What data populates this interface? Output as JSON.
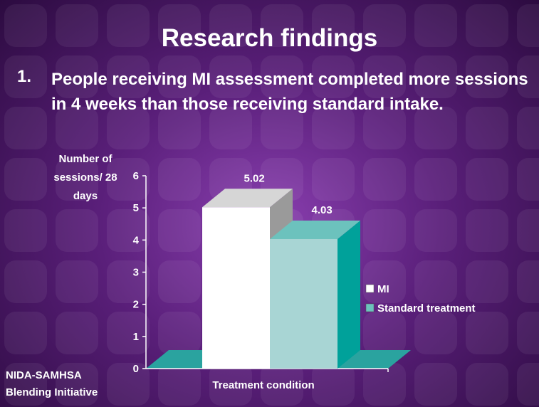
{
  "slide": {
    "title": "Research findings",
    "bullet_number": "1.",
    "bullet_text": "People receiving MI assessment completed more sessions in 4 weeks than those receiving standard intake.",
    "footer": [
      "NIDA-SAMHSA",
      "Blending Initiative"
    ]
  },
  "chart_data": {
    "type": "bar3d",
    "y_label": [
      "Number of",
      "sessions/ 28",
      "days"
    ],
    "x_label": "Treatment condition",
    "categories": [
      null
    ],
    "series": [
      {
        "name": "MI",
        "color": "#ffffff",
        "values": [
          5.02
        ]
      },
      {
        "name": "Standard treatment",
        "color": "#a8d5d4",
        "values": [
          4.03
        ]
      }
    ],
    "ylim": [
      0,
      6
    ],
    "yticks": [
      0,
      1,
      2,
      3,
      4,
      5,
      6
    ],
    "legend": "right",
    "floor_color": "#2aa39f"
  }
}
